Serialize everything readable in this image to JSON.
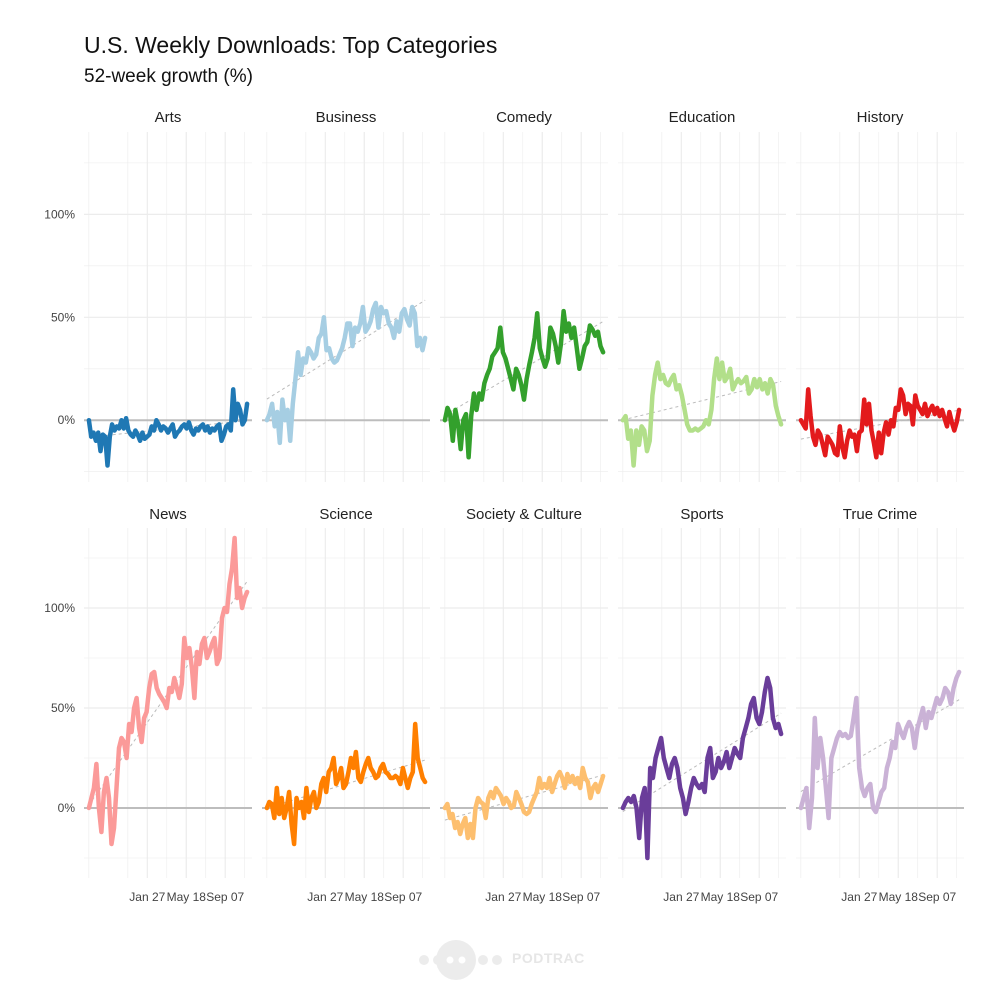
{
  "title": "U.S. Weekly Downloads: Top Categories",
  "subtitle": "52-week growth (%)",
  "logo_text": "PODTRAC",
  "colors": {
    "zero_line": "#bdbdbd",
    "grid": "#ececec",
    "trend": "#bbbbbb",
    "text": "#444444"
  },
  "chart_data": {
    "type": "line",
    "layout": "small-multiples 2 rows x 5 columns",
    "grid": true,
    "y_ticks": [
      0,
      50,
      100
    ],
    "y_tick_labels": [
      "0%",
      "50%",
      "100%"
    ],
    "x_ticks": [
      26,
      42,
      58
    ],
    "x_tick_labels": [
      "Jan 27",
      "May 18",
      "Sep 07"
    ],
    "x_range": [
      0,
      69
    ],
    "rows": [
      {
        "ylim": [
          -30,
          140
        ]
      },
      {
        "ylim": [
          -35,
          140
        ]
      }
    ],
    "panels": [
      {
        "name": "Arts",
        "color": "#1f78b4",
        "values": [
          0,
          -8,
          -6,
          -10,
          -6,
          -15,
          -7,
          -8,
          -22,
          -8,
          -2,
          -5,
          -3,
          -4,
          0,
          -4,
          1,
          -5,
          -7,
          -8,
          -5,
          -7,
          -10,
          -6,
          -9,
          -8,
          -7,
          -3,
          -5,
          0,
          -2,
          -5,
          -3,
          -4,
          -6,
          -4,
          -2,
          -8,
          -6,
          -5,
          -3,
          -2,
          -4,
          -1,
          -5,
          -7,
          -4,
          -5,
          -3,
          -2,
          -5,
          -3,
          -6,
          -4,
          -5,
          -3,
          -2,
          -10,
          -7,
          -3,
          -2,
          -5,
          15,
          0,
          8,
          5,
          -2,
          0,
          8
        ]
      },
      {
        "name": "Business",
        "color": "#a6cee3",
        "values": [
          0,
          3,
          8,
          -3,
          4,
          -11,
          10,
          0,
          5,
          -10,
          8,
          20,
          33,
          22,
          30,
          28,
          35,
          33,
          30,
          32,
          40,
          42,
          50,
          34,
          35,
          30,
          28,
          29,
          32,
          35,
          40,
          47,
          47,
          36,
          45,
          43,
          47,
          55,
          43,
          45,
          48,
          54,
          57,
          45,
          55,
          52,
          53,
          47,
          45,
          40,
          48,
          43,
          52,
          54,
          49,
          46,
          55,
          52,
          36,
          40,
          34,
          40
        ]
      },
      {
        "name": "Comedy",
        "color": "#33a02c",
        "values": [
          0,
          6,
          3,
          -10,
          5,
          -2,
          -14,
          0,
          3,
          -18,
          2,
          13,
          5,
          13,
          10,
          18,
          22,
          25,
          31,
          33,
          35,
          45,
          33,
          30,
          25,
          20,
          15,
          25,
          22,
          17,
          10,
          20,
          27,
          33,
          40,
          52,
          35,
          30,
          26,
          30,
          45,
          42,
          36,
          28,
          37,
          53,
          43,
          47,
          40,
          45,
          35,
          25,
          30,
          36,
          38,
          46,
          44,
          41,
          43,
          36,
          33
        ]
      },
      {
        "name": "Education",
        "color": "#b2df8a",
        "values": [
          0,
          2,
          -9,
          -5,
          -22,
          -5,
          -12,
          -3,
          -5,
          -15,
          -10,
          12,
          22,
          28,
          20,
          22,
          18,
          17,
          20,
          22,
          15,
          17,
          12,
          5,
          -2,
          -5,
          -5,
          -4,
          -5,
          -4,
          -3,
          0,
          -2,
          5,
          20,
          30,
          20,
          28,
          19,
          21,
          25,
          15,
          18,
          20,
          18,
          19,
          21,
          13,
          15,
          20,
          16,
          20,
          15,
          18,
          13,
          20,
          17,
          7,
          2,
          -2
        ]
      },
      {
        "name": "History",
        "color": "#e31a1c",
        "values": [
          0,
          -2,
          -4,
          15,
          2,
          -8,
          -12,
          -5,
          -7,
          -12,
          -17,
          -8,
          -10,
          -12,
          -16,
          -17,
          -3,
          -13,
          -18,
          -10,
          -5,
          -8,
          -7,
          -15,
          -6,
          -5,
          10,
          -2,
          8,
          -5,
          -11,
          -18,
          -6,
          -16,
          -6,
          -1,
          -7,
          0,
          -3,
          6,
          5,
          15,
          12,
          3,
          8,
          7,
          -2,
          12,
          7,
          5,
          3,
          8,
          2,
          5,
          7,
          3,
          6,
          2,
          5,
          1,
          -3,
          4,
          -1,
          -5,
          -1,
          5
        ]
      },
      {
        "name": "News",
        "color": "#fb9a99",
        "values": [
          0,
          5,
          10,
          22,
          0,
          -12,
          8,
          15,
          5,
          -18,
          -10,
          10,
          30,
          35,
          33,
          25,
          42,
          38,
          50,
          55,
          40,
          33,
          45,
          48,
          60,
          67,
          68,
          60,
          57,
          55,
          53,
          50,
          60,
          58,
          65,
          60,
          55,
          62,
          85,
          75,
          80,
          70,
          55,
          78,
          72,
          82,
          85,
          75,
          78,
          82,
          85,
          72,
          75,
          95,
          100,
          98,
          112,
          120,
          135,
          105,
          110,
          100,
          105,
          108
        ]
      },
      {
        "name": "Science",
        "color": "#ff7f00",
        "values": [
          0,
          3,
          2,
          -5,
          10,
          -3,
          5,
          -5,
          0,
          8,
          -8,
          -18,
          5,
          0,
          3,
          -5,
          10,
          -2,
          5,
          8,
          0,
          3,
          12,
          15,
          8,
          18,
          20,
          25,
          12,
          15,
          20,
          10,
          12,
          18,
          25,
          20,
          28,
          15,
          13,
          18,
          22,
          25,
          20,
          18,
          15,
          16,
          20,
          22,
          18,
          17,
          15,
          15,
          16,
          15,
          12,
          20,
          15,
          10,
          15,
          18,
          42,
          25,
          20,
          15,
          13
        ]
      },
      {
        "name": "Society & Culture",
        "color": "#fdbf6f",
        "values": [
          0,
          2,
          -5,
          -3,
          -10,
          -7,
          -13,
          -8,
          -5,
          -15,
          -8,
          -15,
          0,
          5,
          3,
          2,
          -5,
          5,
          8,
          5,
          10,
          8,
          6,
          2,
          5,
          3,
          0,
          1,
          8,
          5,
          2,
          -2,
          -3,
          -2,
          2,
          5,
          8,
          15,
          10,
          12,
          10,
          15,
          8,
          12,
          16,
          18,
          15,
          10,
          17,
          13,
          16,
          12,
          15,
          10,
          20,
          15,
          13,
          5,
          10,
          12,
          8,
          12,
          16
        ]
      },
      {
        "name": "Sports",
        "color": "#6a3d9a",
        "values": [
          0,
          3,
          5,
          3,
          6,
          0,
          -15,
          5,
          10,
          -25,
          20,
          15,
          25,
          30,
          35,
          25,
          20,
          15,
          22,
          25,
          20,
          10,
          5,
          -3,
          3,
          10,
          15,
          12,
          10,
          12,
          8,
          25,
          30,
          15,
          18,
          25,
          20,
          23,
          28,
          20,
          25,
          30,
          27,
          25,
          35,
          40,
          45,
          52,
          55,
          45,
          42,
          48,
          58,
          65,
          60,
          45,
          40,
          42,
          37
        ]
      },
      {
        "name": "True Crime",
        "color": "#cab2d6",
        "values": [
          0,
          5,
          10,
          -10,
          5,
          45,
          20,
          35,
          25,
          10,
          -5,
          25,
          30,
          35,
          38,
          36,
          37,
          35,
          36,
          45,
          55,
          20,
          10,
          6,
          10,
          12,
          0,
          -2,
          3,
          8,
          10,
          20,
          25,
          33,
          30,
          42,
          38,
          35,
          40,
          43,
          40,
          30,
          40,
          45,
          50,
          40,
          48,
          45,
          50,
          55,
          52,
          55,
          60,
          58,
          52,
          60,
          65,
          68
        ]
      }
    ]
  }
}
